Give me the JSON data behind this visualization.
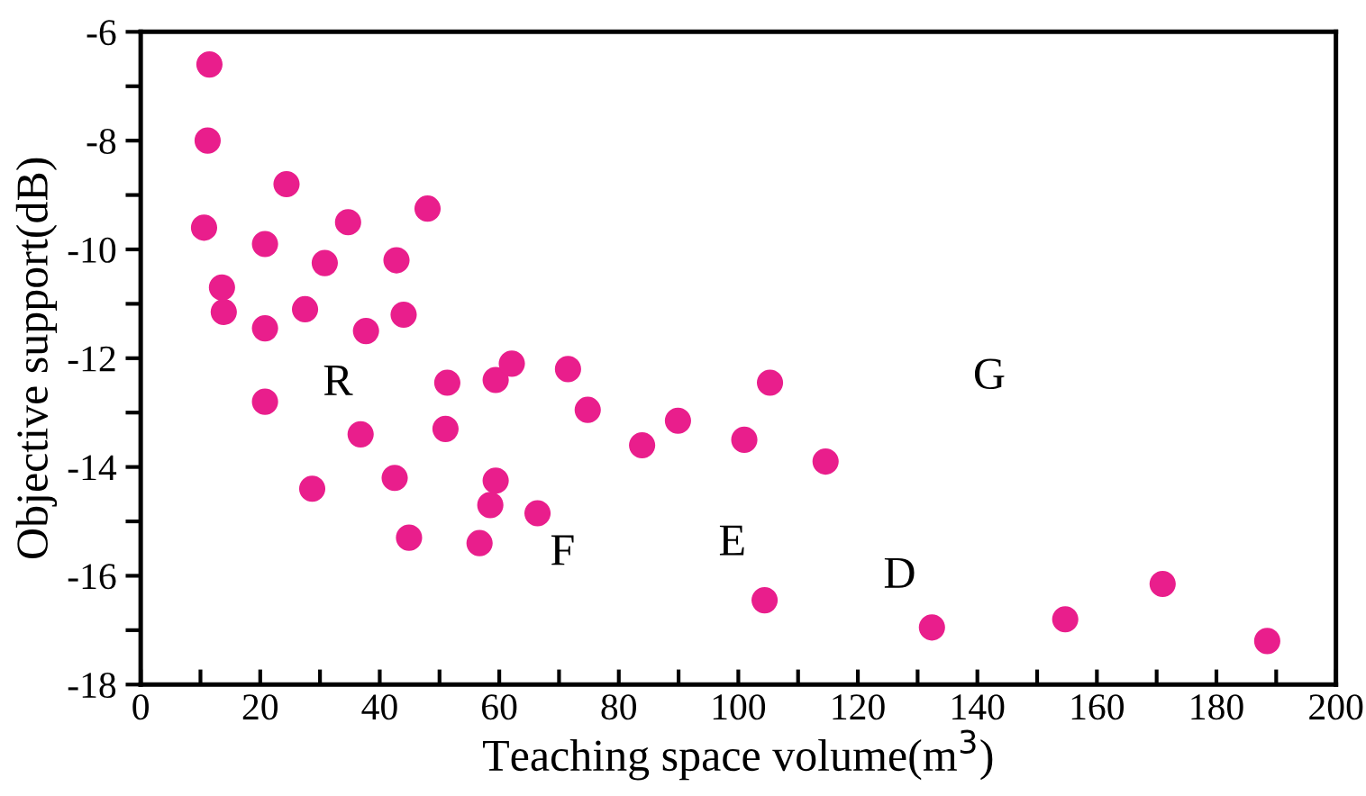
{
  "chart_data": {
    "type": "scatter",
    "xlabel": "Teaching space volume(m$^{3}$)",
    "ylabel": "Objective support(dB)",
    "x": [
      11.5,
      11.2,
      10.6,
      13.6,
      13.9,
      24.4,
      20.8,
      30.8,
      34.7,
      27.5,
      20.8,
      37.7,
      42.8,
      44.0,
      48.0,
      20.8,
      28.7,
      36.8,
      42.5,
      44.9,
      51.3,
      51.0,
      59.4,
      62.1,
      59.4,
      58.5,
      66.4,
      56.7,
      71.5,
      74.8,
      83.9,
      89.9,
      101,
      105.3,
      114.6,
      104.4,
      132.4,
      154.7,
      171,
      188.5
    ],
    "series": [
      {
        "color": "#e91e8c",
        "values": [
          -6.6,
          -8.0,
          -9.6,
          -10.7,
          -11.15,
          -8.8,
          -9.9,
          -10.25,
          -9.5,
          -11.1,
          -11.45,
          -11.5,
          -10.2,
          -11.2,
          -9.25,
          -12.8,
          -14.4,
          -13.4,
          -14.2,
          -15.3,
          -12.45,
          -13.3,
          -12.4,
          -12.1,
          -14.25,
          -14.7,
          -14.85,
          -15.4,
          -12.2,
          -12.95,
          -13.6,
          -13.15,
          -13.5,
          -12.45,
          -13.9,
          -16.45,
          -16.95,
          -16.8,
          -16.15,
          -17.2
        ]
      }
    ],
    "marker": "circle",
    "grid": false,
    "legend": false,
    "xlim": [
      0,
      200
    ],
    "ylim": [
      -18,
      -6
    ],
    "xticks": [
      0,
      {
        "value": 10,
        "label": null
      },
      20,
      {
        "value": 30,
        "label": null
      },
      40,
      {
        "value": 50,
        "label": null
      },
      60,
      {
        "value": 70,
        "label": null
      },
      80,
      {
        "value": 90,
        "label": null
      },
      100,
      {
        "value": 110,
        "label": null
      },
      120,
      {
        "value": 130,
        "label": null
      },
      140,
      {
        "value": 150,
        "label": null
      },
      160,
      {
        "value": 170,
        "label": null
      },
      180,
      {
        "value": 190,
        "label": null
      },
      200
    ],
    "yticks": [
      -18,
      {
        "value": -17,
        "label": null
      },
      -16,
      {
        "value": -15,
        "label": null
      },
      -14,
      {
        "value": -13,
        "label": null
      },
      -12,
      {
        "value": -11,
        "label": null
      },
      -10,
      {
        "value": -9,
        "label": null
      },
      -8,
      {
        "value": -7,
        "label": null
      },
      -6
    ],
    "annotations": [
      "R",
      "F",
      "E",
      "D",
      "G"
    ]
  }
}
